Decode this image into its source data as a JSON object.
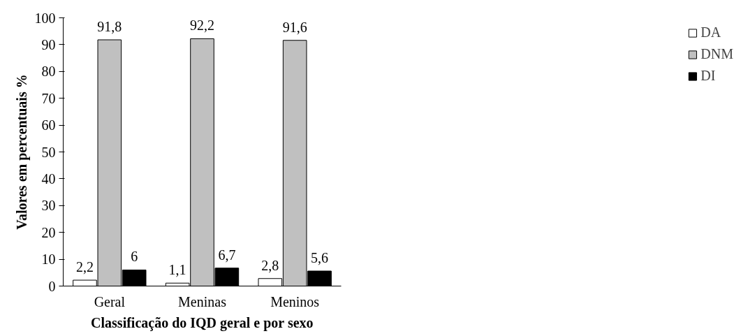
{
  "chart_data": {
    "type": "bar",
    "xlabel": "Classificação do IQD geral e por sexo",
    "ylabel": "Valores em percentuais %",
    "categories": [
      "Geral",
      "Meninas",
      "Meninos"
    ],
    "series": [
      {
        "name": "DA",
        "color": "#ffffff",
        "values": [
          2.2,
          1.1,
          2.8
        ],
        "value_labels": [
          "2,2",
          "1,1",
          "2,8"
        ]
      },
      {
        "name": "DNM",
        "color": "#c0c0c0",
        "values": [
          91.8,
          92.2,
          91.6
        ],
        "value_labels": [
          "91,8",
          "92,2",
          "91,6"
        ]
      },
      {
        "name": "DI",
        "color": "#000000",
        "values": [
          6,
          6.7,
          5.6
        ],
        "value_labels": [
          "6",
          "6,7",
          "5,6"
        ]
      }
    ],
    "ylim": [
      0,
      100
    ],
    "yticks": [
      0,
      10,
      20,
      30,
      40,
      50,
      60,
      70,
      80,
      90,
      100
    ],
    "grid": false,
    "legend": "right"
  }
}
